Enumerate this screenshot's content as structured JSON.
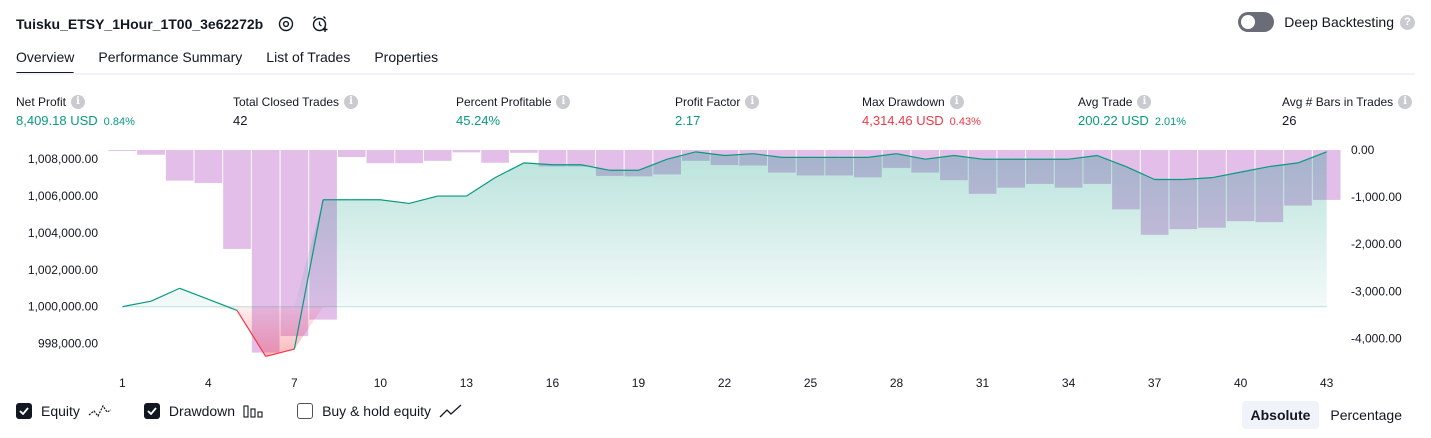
{
  "header": {
    "strategy_title": "Tuisku_ETSY_1Hour_1T00_3e62272b",
    "settings_icon": "gear-icon",
    "alert_icon": "alarm-clock-plus-icon",
    "deep_backtesting_label": "Deep Backtesting",
    "deep_backtesting_on": false,
    "help_mark": "?"
  },
  "tabs": [
    {
      "label": "Overview",
      "active": true
    },
    {
      "label": "Performance Summary",
      "active": false
    },
    {
      "label": "List of Trades",
      "active": false
    },
    {
      "label": "Properties",
      "active": false
    }
  ],
  "metrics": [
    {
      "label": "Net Profit",
      "value": "8,409.18 USD",
      "pct": "0.84%",
      "color": "green"
    },
    {
      "label": "Total Closed Trades",
      "value": "42",
      "pct": "",
      "color": "dark"
    },
    {
      "label": "Percent Profitable",
      "value": "45.24%",
      "pct": "",
      "color": "green"
    },
    {
      "label": "Profit Factor",
      "value": "2.17",
      "pct": "",
      "color": "green"
    },
    {
      "label": "Max Drawdown",
      "value": "4,314.46 USD",
      "pct": "0.43%",
      "color": "red"
    },
    {
      "label": "Avg Trade",
      "value": "200.22 USD",
      "pct": "2.01%",
      "color": "green"
    },
    {
      "label": "Avg # Bars in Trades",
      "value": "26",
      "pct": "",
      "color": "dark"
    }
  ],
  "info_mark": "i",
  "chart_data": {
    "type": "area",
    "left_axis_ticks": [
      1008000,
      1006000,
      1004000,
      1002000,
      1000000,
      998000
    ],
    "left_axis_labels": [
      "1,008,000.00",
      "1,006,000.00",
      "1,004,000.00",
      "1,002,000.00",
      "1,000,000.00",
      "998,000.00"
    ],
    "left_ylim": [
      997000,
      1008500
    ],
    "right_axis_ticks": [
      0,
      -1000,
      -2000,
      -3000,
      -4000
    ],
    "right_axis_labels": [
      "0.00",
      "-1,000.00",
      "-2,000.00",
      "-3,000.00",
      "-4,000.00"
    ],
    "right_ylim": [
      -4500,
      0
    ],
    "x_tick_labels": [
      "1",
      "4",
      "7",
      "10",
      "13",
      "16",
      "19",
      "22",
      "25",
      "28",
      "31",
      "34",
      "37",
      "40",
      "43"
    ],
    "x_ticks": [
      1,
      4,
      7,
      10,
      13,
      16,
      19,
      22,
      25,
      28,
      31,
      34,
      37,
      40,
      43
    ],
    "baseline": 1000000,
    "series": [
      {
        "name": "Equity",
        "color": "#089981",
        "x": [
          1,
          2,
          3,
          4,
          5,
          6,
          7,
          8,
          9,
          10,
          11,
          12,
          13,
          14,
          15,
          16,
          17,
          18,
          19,
          20,
          21,
          22,
          23,
          24,
          25,
          26,
          27,
          28,
          29,
          30,
          31,
          32,
          33,
          34,
          35,
          36,
          37,
          38,
          39,
          40,
          41,
          42,
          43
        ],
        "values": [
          1000000,
          1000300,
          1001000,
          1000400,
          999800,
          997300,
          997700,
          1005800,
          1005800,
          1005800,
          1005600,
          1006000,
          1006000,
          1007000,
          1007800,
          1007700,
          1007700,
          1007400,
          1007400,
          1008000,
          1008400,
          1008200,
          1008300,
          1008100,
          1008100,
          1008100,
          1008100,
          1008300,
          1008000,
          1008200,
          1008000,
          1008000,
          1008000,
          1008000,
          1008200,
          1007600,
          1006900,
          1006900,
          1007000,
          1007300,
          1007600,
          1007800,
          1008400
        ]
      },
      {
        "name": "Drawdown",
        "color": "#ce93d8",
        "x": [
          1,
          2,
          3,
          4,
          5,
          6,
          7,
          8,
          9,
          10,
          11,
          12,
          13,
          14,
          15,
          16,
          17,
          18,
          19,
          20,
          21,
          22,
          23,
          24,
          25,
          26,
          27,
          28,
          29,
          30,
          31,
          32,
          33,
          34,
          35,
          36,
          37,
          38,
          39,
          40,
          41,
          42,
          43
        ],
        "values": [
          -20,
          -100,
          -650,
          -700,
          -2100,
          -4300,
          -3950,
          -3600,
          -150,
          -280,
          -280,
          -230,
          -50,
          -270,
          -60,
          -350,
          -350,
          -550,
          -560,
          -520,
          -230,
          -320,
          -330,
          -480,
          -540,
          -540,
          -580,
          -380,
          -480,
          -640,
          -930,
          -800,
          -720,
          -800,
          -720,
          -1260,
          -1800,
          -1680,
          -1650,
          -1510,
          -1530,
          -1180,
          -1060
        ]
      }
    ]
  },
  "legend": {
    "equity": {
      "label": "Equity",
      "checked": true,
      "icon": "equity-line-icon"
    },
    "drawdown": {
      "label": "Drawdown",
      "checked": true,
      "icon": "drawdown-bars-icon"
    },
    "buy_hold": {
      "label": "Buy & hold equity",
      "checked": false,
      "icon": "buy-hold-line-icon"
    }
  },
  "scale_toggle": {
    "absolute": "Absolute",
    "percentage": "Percentage",
    "selected": "Absolute"
  },
  "colors": {
    "green": "#089981",
    "red": "#f23645",
    "drawdown": "#ce93d8"
  }
}
